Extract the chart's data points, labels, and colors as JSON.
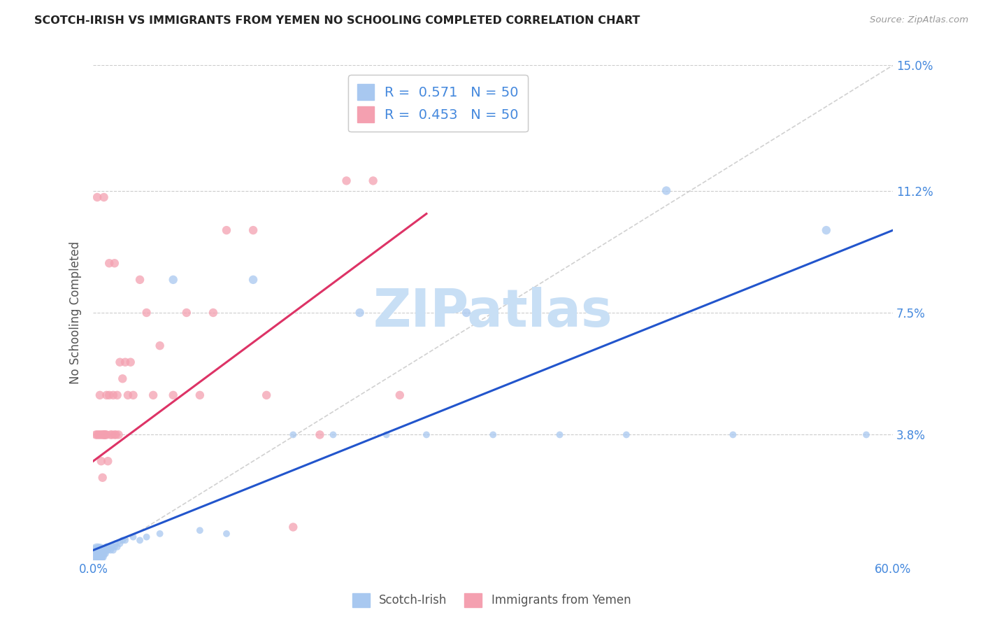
{
  "title": "SCOTCH-IRISH VS IMMIGRANTS FROM YEMEN NO SCHOOLING COMPLETED CORRELATION CHART",
  "source": "Source: ZipAtlas.com",
  "ylabel": "No Schooling Completed",
  "xlim": [
    0.0,
    0.6
  ],
  "ylim": [
    0.0,
    0.15
  ],
  "xticks": [
    0.0,
    0.1,
    0.2,
    0.3,
    0.4,
    0.5,
    0.6
  ],
  "xticklabels": [
    "0.0%",
    "",
    "",
    "",
    "",
    "",
    "60.0%"
  ],
  "yticks": [
    0.038,
    0.075,
    0.112,
    0.15
  ],
  "yticklabels_right": [
    "3.8%",
    "7.5%",
    "11.2%",
    "15.0%"
  ],
  "legend1_label": "R =  0.571   N = 50",
  "legend2_label": "R =  0.453   N = 50",
  "scatter1_color": "#a8c8f0",
  "scatter2_color": "#f4a0b0",
  "line1_color": "#2255cc",
  "line2_color": "#dd3366",
  "watermark": "ZIPatlas",
  "watermark_color": "#c8dff5",
  "grid_color": "#cccccc",
  "title_color": "#222222",
  "axis_label_color": "#555555",
  "tick_color": "#4488dd",
  "legend_R_color": "#4488dd",
  "scotch_irish_x": [
    0.002,
    0.003,
    0.003,
    0.004,
    0.004,
    0.005,
    0.005,
    0.005,
    0.006,
    0.006,
    0.007,
    0.007,
    0.008,
    0.008,
    0.009,
    0.009,
    0.01,
    0.01,
    0.011,
    0.012,
    0.013,
    0.014,
    0.015,
    0.016,
    0.017,
    0.018,
    0.02,
    0.022,
    0.024,
    0.03,
    0.035,
    0.04,
    0.05,
    0.06,
    0.08,
    0.1,
    0.12,
    0.15,
    0.18,
    0.2,
    0.22,
    0.25,
    0.28,
    0.3,
    0.35,
    0.4,
    0.43,
    0.48,
    0.55,
    0.58
  ],
  "scotch_irish_y": [
    0.002,
    0.001,
    0.003,
    0.002,
    0.001,
    0.003,
    0.002,
    0.001,
    0.002,
    0.003,
    0.002,
    0.001,
    0.003,
    0.002,
    0.003,
    0.002,
    0.003,
    0.004,
    0.003,
    0.004,
    0.003,
    0.004,
    0.003,
    0.004,
    0.005,
    0.004,
    0.005,
    0.006,
    0.006,
    0.007,
    0.006,
    0.007,
    0.008,
    0.085,
    0.009,
    0.008,
    0.085,
    0.038,
    0.038,
    0.075,
    0.038,
    0.038,
    0.075,
    0.038,
    0.038,
    0.038,
    0.112,
    0.038,
    0.1,
    0.038
  ],
  "scotch_irish_size": [
    300,
    250,
    200,
    180,
    220,
    180,
    150,
    120,
    100,
    100,
    80,
    80,
    70,
    70,
    60,
    60,
    55,
    55,
    50,
    50,
    50,
    50,
    50,
    50,
    50,
    50,
    50,
    50,
    50,
    50,
    50,
    50,
    50,
    80,
    50,
    50,
    80,
    50,
    50,
    80,
    50,
    50,
    80,
    50,
    50,
    50,
    80,
    50,
    80,
    50
  ],
  "yemen_x": [
    0.002,
    0.003,
    0.004,
    0.005,
    0.005,
    0.006,
    0.006,
    0.007,
    0.007,
    0.008,
    0.008,
    0.009,
    0.009,
    0.01,
    0.01,
    0.011,
    0.012,
    0.013,
    0.014,
    0.015,
    0.016,
    0.017,
    0.018,
    0.019,
    0.02,
    0.022,
    0.024,
    0.026,
    0.028,
    0.03,
    0.035,
    0.04,
    0.045,
    0.05,
    0.06,
    0.07,
    0.08,
    0.09,
    0.1,
    0.12,
    0.13,
    0.15,
    0.17,
    0.19,
    0.21,
    0.23,
    0.003,
    0.008,
    0.012,
    0.016
  ],
  "yemen_y": [
    0.038,
    0.038,
    0.038,
    0.05,
    0.038,
    0.038,
    0.03,
    0.038,
    0.025,
    0.038,
    0.038,
    0.038,
    0.038,
    0.038,
    0.05,
    0.03,
    0.05,
    0.038,
    0.038,
    0.05,
    0.038,
    0.038,
    0.05,
    0.038,
    0.06,
    0.055,
    0.06,
    0.05,
    0.06,
    0.05,
    0.085,
    0.075,
    0.05,
    0.065,
    0.05,
    0.075,
    0.05,
    0.075,
    0.1,
    0.1,
    0.05,
    0.01,
    0.038,
    0.115,
    0.115,
    0.05,
    0.11,
    0.11,
    0.09,
    0.09
  ],
  "yemen_size": [
    80,
    80,
    80,
    80,
    80,
    80,
    80,
    80,
    80,
    80,
    80,
    80,
    80,
    80,
    80,
    80,
    80,
    80,
    80,
    80,
    80,
    80,
    80,
    80,
    80,
    80,
    80,
    80,
    80,
    80,
    80,
    80,
    80,
    80,
    80,
    80,
    80,
    80,
    80,
    80,
    80,
    80,
    80,
    80,
    80,
    80,
    80,
    80,
    80,
    80
  ],
  "line1_x": [
    0.0,
    0.6
  ],
  "line1_y": [
    0.003,
    0.1
  ],
  "line2_x": [
    0.0,
    0.25
  ],
  "line2_y": [
    0.03,
    0.105
  ]
}
